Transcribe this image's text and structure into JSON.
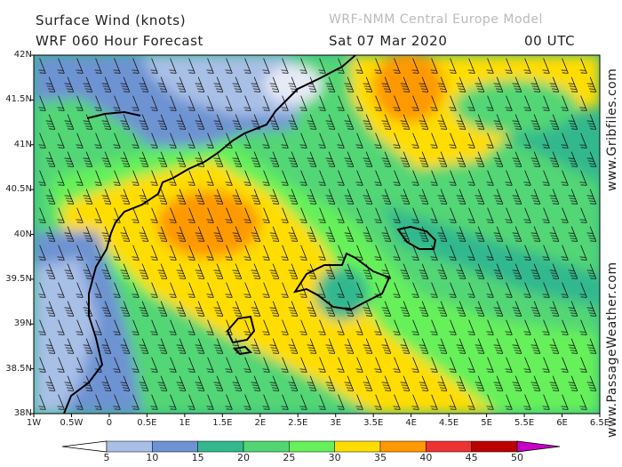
{
  "header": {
    "title": "Surface Wind (knots)",
    "subtitle": "WRF 060 Hour Forecast",
    "model": "WRF-NMM Central Europe Model",
    "date": "Sat 07 Mar 2020",
    "time": "00 UTC"
  },
  "side_text": {
    "top": "www.Gribfiles.com",
    "bottom": "www.PassageWeather.com"
  },
  "map": {
    "lat_labels": [
      "42N",
      "41.5N",
      "41N",
      "40.5N",
      "40N",
      "39.5N",
      "39N",
      "38.5N",
      "38N"
    ],
    "lon_labels": [
      "1W",
      "0.5W",
      "0",
      "0.5E",
      "1E",
      "1.5E",
      "2E",
      "2.5E",
      "3E",
      "3.5E",
      "4E",
      "4.5E",
      "5E",
      "5.5E",
      "6E",
      "6.5E"
    ],
    "lon_range": [
      -1,
      6.5
    ],
    "lat_range": [
      38,
      42
    ],
    "wind_direction": "north-northwest"
  },
  "colorbar": {
    "labels": [
      "5",
      "10",
      "15",
      "20",
      "25",
      "30",
      "35",
      "40",
      "45",
      "50"
    ],
    "colors": [
      "#e6eaf6",
      "#a8bfe6",
      "#6e93d2",
      "#33b88e",
      "#52d674",
      "#66f05a",
      "#ffdd00",
      "#ff9900",
      "#ee3333",
      "#bb0000",
      "#c800c8"
    ]
  }
}
